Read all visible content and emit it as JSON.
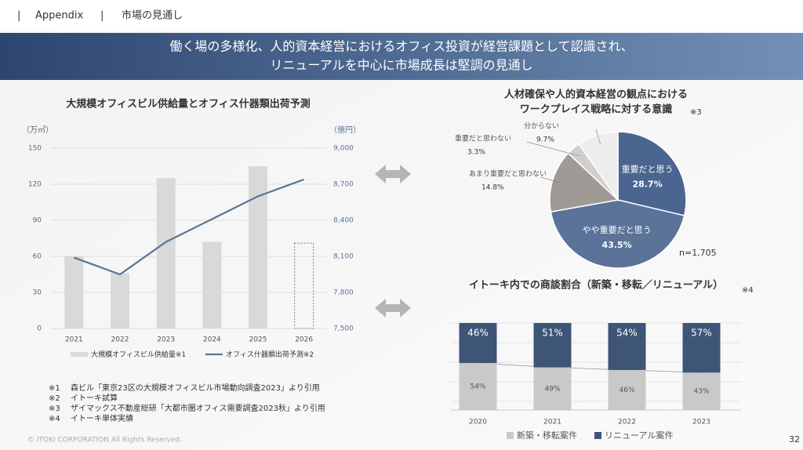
{
  "header": {
    "section": "Appendix",
    "topic": "市場の見通し"
  },
  "banner": [
    "働く場の多様化、人的資本経営におけるオフィス投資が経営課題として認識され、",
    "リニューアルを中心に市場成長は堅調の見通し"
  ],
  "chart_data": [
    {
      "type": "bar_line",
      "title": "大規模オフィスビル供給量とオフィス什器類出荷予測",
      "y_label": "（万㎡）",
      "y2_label": "（億円）",
      "categories": [
        "2021",
        "2022",
        "2023",
        "2024",
        "2025",
        "2026"
      ],
      "series": [
        {
          "name": "大規模オフィスビル供給量",
          "note": "※1",
          "type": "bar",
          "color": "#d9d9d9",
          "values": [
            60,
            46,
            125,
            72,
            135,
            71
          ],
          "dashed_categories": [
            "2026"
          ]
        },
        {
          "name": "オフィス什器類出荷予測",
          "note": "※2",
          "type": "line",
          "axis": "y2",
          "color": "#5a7399",
          "values": [
            8090,
            7950,
            8220,
            8410,
            8600,
            8740
          ]
        }
      ],
      "ylim": [
        0,
        150
      ],
      "yticks": [
        0,
        30,
        60,
        90,
        120,
        150
      ],
      "y2lim": [
        7500,
        9000
      ],
      "y2ticks": [
        {
          "value": 7500,
          "label": "7,500"
        },
        {
          "value": 7800,
          "label": "7,800"
        },
        {
          "value": 8100,
          "label": "8,100"
        },
        {
          "value": 8400,
          "label": "8,400"
        },
        {
          "value": 8700,
          "label": "8,700"
        },
        {
          "value": 9000,
          "label": "9,000"
        }
      ],
      "grid": true
    },
    {
      "type": "pie",
      "title": [
        "人材確保や人的資本経営の観点における",
        "ワークプレイス戦略に対する意識"
      ],
      "note": "※3",
      "sample": "n=1,705",
      "categories": [
        "重要だと思う",
        "やや重要だと思う",
        "あまり重要だと思わない",
        "重要だと思わない",
        "分からない"
      ],
      "values": [
        28.7,
        43.5,
        14.8,
        3.3,
        9.7
      ],
      "value_labels": [
        "28.7%",
        "43.5%",
        "14.8%",
        "3.3%",
        "9.7%"
      ],
      "colors": [
        "#4a6590",
        "#5b7399",
        "#a09a96",
        "#cfcfcf",
        "#ededed"
      ]
    },
    {
      "type": "stacked_bar",
      "title": "イトーキ内での商談割合（新築・移転／リニューアル）",
      "note": "※4",
      "categories": [
        "2020",
        "2021",
        "2022",
        "2023"
      ],
      "series": [
        {
          "name": "新築・移転案件",
          "color": "#c9c9c9",
          "values": [
            54,
            49,
            46,
            43
          ],
          "value_labels": [
            "54%",
            "49%",
            "46%",
            "43%"
          ]
        },
        {
          "name": "リニューアル案件",
          "color": "#3f5577",
          "values": [
            46,
            51,
            54,
            57
          ],
          "value_labels": [
            "46%",
            "51%",
            "54%",
            "57%"
          ]
        }
      ]
    }
  ],
  "footnotes": [
    {
      "mark": "※1",
      "text": "森ビル「東京23区の大規模オフィスビル市場動向調査2023」より引用"
    },
    {
      "mark": "※2",
      "text": "イトーキ試算"
    },
    {
      "mark": "※3",
      "text": "ザイマックス不動産総研「大都市圏オフィス需要調査2023秋」より引用"
    },
    {
      "mark": "※4",
      "text": "イトーキ単体実績"
    }
  ],
  "footer": {
    "copyright": "© ITOKI CORPORATION All Rights Reserved.",
    "page": "32"
  }
}
